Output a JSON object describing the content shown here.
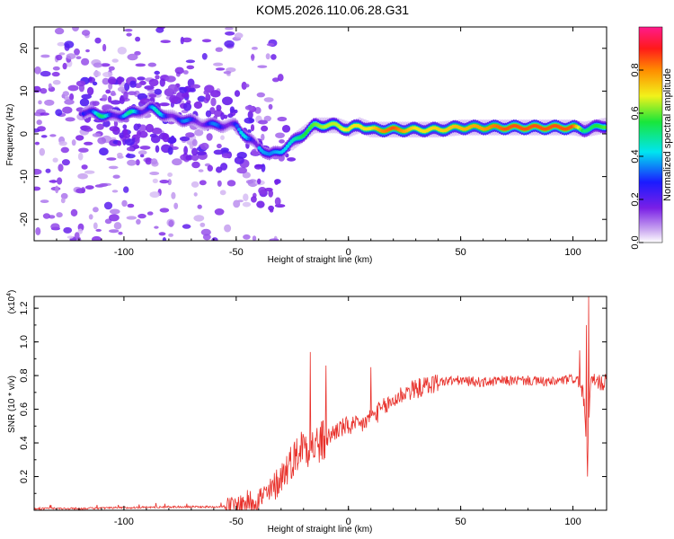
{
  "title": "KOM5.2026.110.06.28.G31",
  "colors": {
    "snr_line": "#e8302a",
    "frame": "#000000",
    "background": "#ffffff"
  },
  "chart_data": [
    {
      "type": "heatmap",
      "xlabel": "Height of straight line (km)",
      "ylabel": "Frequency (Hz)",
      "xlim": [
        -140,
        115
      ],
      "ylim": [
        -25,
        25
      ],
      "xticks": [
        -100,
        -50,
        0,
        50,
        100
      ],
      "yticks": [
        -20,
        -10,
        0,
        10,
        20
      ],
      "colorbar": {
        "label": "Normalized spectral amplitude",
        "range": [
          0.0,
          1.0
        ],
        "ticks": [
          "0.0",
          "0.2",
          "0.4",
          "0.6",
          "0.8"
        ],
        "tick_values": [
          0.0,
          0.2,
          0.4,
          0.6,
          0.8
        ],
        "colormap": "rainbow: white → violet → blue → cyan → green → yellow → orange → red → magenta"
      },
      "ridge": {
        "description": "dominant frequency track vs height",
        "x": [
          -115,
          -105,
          -95,
          -88,
          -80,
          -70,
          -60,
          -50,
          -45,
          -40,
          -35,
          -30,
          -25,
          -20,
          -15,
          -10,
          -5,
          0,
          5,
          10,
          15,
          20,
          30,
          40,
          50,
          60,
          70,
          80,
          90,
          100,
          105,
          110,
          115
        ],
        "freq": [
          5,
          4,
          5,
          6,
          4,
          3,
          2,
          2,
          -1,
          -3,
          -5,
          -4,
          -2,
          0,
          2,
          2,
          2,
          1,
          2,
          1,
          1,
          1,
          1,
          1,
          1.5,
          1.5,
          1.5,
          1.5,
          1.5,
          1.5,
          1,
          1.5,
          2
        ],
        "amplitude": [
          0.55,
          0.5,
          0.5,
          0.5,
          0.4,
          0.35,
          0.35,
          0.4,
          0.45,
          0.4,
          0.35,
          0.4,
          0.45,
          0.55,
          0.6,
          0.65,
          0.65,
          0.7,
          0.7,
          0.7,
          0.8,
          0.85,
          0.7,
          0.72,
          0.75,
          0.78,
          0.85,
          0.85,
          0.85,
          0.85,
          0.5,
          0.55,
          0.6
        ]
      }
    },
    {
      "type": "line",
      "xlabel": "Height of straight line (km)",
      "ylabel": "SNR (10 * v/v)",
      "multiplier_label": "(x10^4)",
      "multiplier_base": "(x10",
      "multiplier_exp": "4",
      "multiplier_close": ")",
      "xlim": [
        -140,
        115
      ],
      "ylim": [
        0,
        1.27
      ],
      "xticks": [
        -100,
        -50,
        0,
        50,
        100
      ],
      "yticks": [
        0.2,
        0.4,
        0.6,
        0.8,
        1.0,
        1.2
      ],
      "series": [
        {
          "name": "SNR",
          "x": [
            -140,
            -120,
            -100,
            -80,
            -60,
            -50,
            -45,
            -40,
            -35,
            -30,
            -25,
            -22,
            -20,
            -18,
            -15,
            -12,
            -10,
            -5,
            0,
            5,
            10,
            15,
            20,
            25,
            30,
            35,
            40,
            45,
            50,
            60,
            70,
            80,
            90,
            95,
            100,
            103,
            105,
            106,
            107,
            108,
            110,
            115
          ],
          "y": [
            0.01,
            0.01,
            0.015,
            0.02,
            0.02,
            0.03,
            0.05,
            0.07,
            0.1,
            0.2,
            0.3,
            0.35,
            0.4,
            0.38,
            0.38,
            0.4,
            0.42,
            0.48,
            0.5,
            0.5,
            0.55,
            0.6,
            0.65,
            0.7,
            0.72,
            0.74,
            0.76,
            0.77,
            0.77,
            0.76,
            0.77,
            0.77,
            0.76,
            0.77,
            0.78,
            0.77,
            0.65,
            0.3,
            0.5,
            0.77,
            0.76,
            0.76
          ]
        }
      ],
      "spikes": [
        {
          "x": -17,
          "y": 0.94
        },
        {
          "x": -10,
          "y": 0.86
        },
        {
          "x": 10,
          "y": 0.85
        },
        {
          "x": 36,
          "y": 0.76
        },
        {
          "x": 103,
          "y": 0.95
        },
        {
          "x": 106,
          "y": 1.1
        },
        {
          "x": 107,
          "y": 1.27
        },
        {
          "x": 106.5,
          "y": 0.2
        }
      ]
    }
  ]
}
